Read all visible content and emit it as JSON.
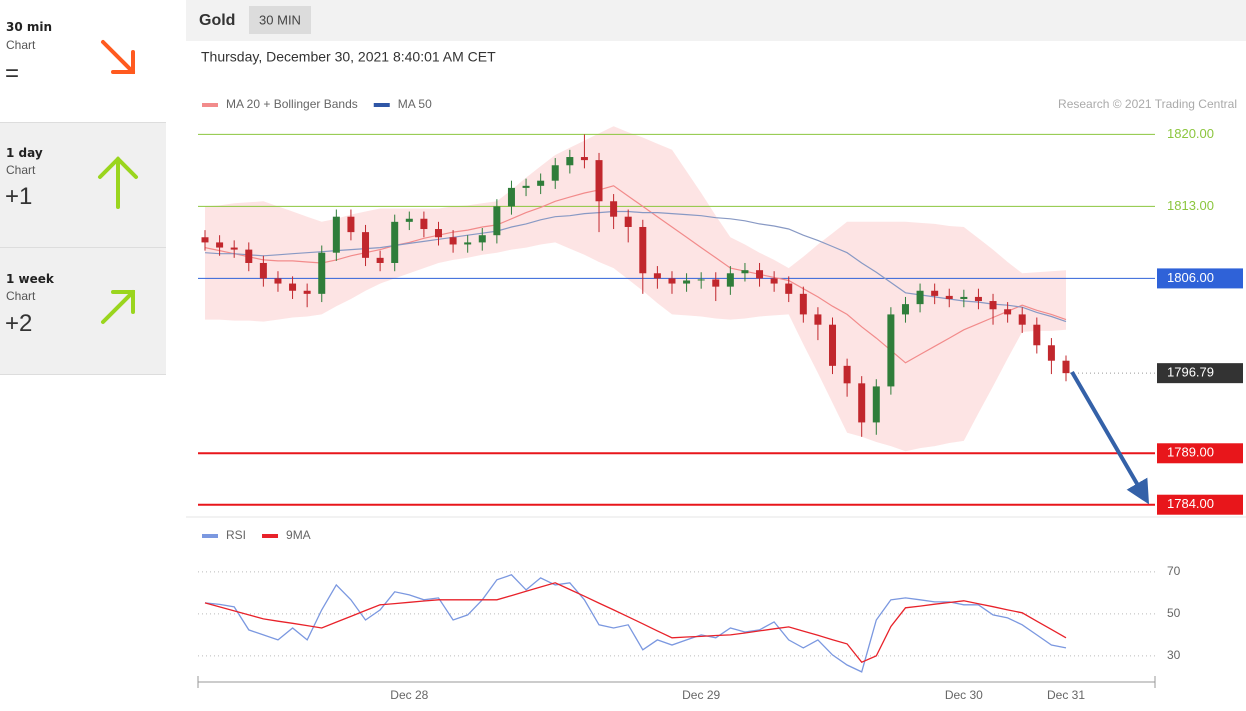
{
  "sidebar": [
    {
      "period": "30 min",
      "label": "Chart",
      "score": "="
    },
    {
      "period": "1 day",
      "label": "Chart",
      "score": "+1"
    },
    {
      "period": "1 week",
      "label": "Chart",
      "score": "+2"
    }
  ],
  "chart_data": [
    {
      "type": "candlestick",
      "title": "Gold",
      "timeframe": "30 MIN",
      "subtitle": "Thursday, December 30, 2021 8:40:01 AM CET",
      "credit": "Research © 2021 Trading Central",
      "categories": [
        null,
        null,
        null,
        null,
        null,
        null,
        null,
        null,
        null,
        null,
        null,
        null,
        null,
        null,
        "Dec 28",
        null,
        null,
        null,
        null,
        null,
        null,
        null,
        null,
        null,
        null,
        null,
        null,
        null,
        null,
        null,
        null,
        null,
        null,
        null,
        "Dec 29",
        null,
        null,
        null,
        null,
        null,
        null,
        null,
        null,
        null,
        null,
        null,
        null,
        null,
        null,
        null,
        null,
        null,
        "Dec 30",
        null,
        null,
        null,
        null,
        null,
        null,
        "Dec 31"
      ],
      "open": [
        1810.0,
        1809.5,
        1809.0,
        1808.8,
        1807.5,
        1806.0,
        1805.5,
        1804.8,
        1804.5,
        1808.5,
        1812.0,
        1810.5,
        1808.0,
        1807.5,
        1811.5,
        1811.8,
        1810.8,
        1810.0,
        1809.3,
        1809.5,
        1810.2,
        1813.0,
        1814.8,
        1815.0,
        1815.5,
        1817.0,
        1817.8,
        1817.5,
        1813.5,
        1812.0,
        1811.0,
        1806.5,
        1806.0,
        1805.5,
        1805.8,
        1805.9,
        1805.2,
        1806.5,
        1806.8,
        1806.0,
        1805.5,
        1804.5,
        1802.5,
        1801.5,
        1797.5,
        1795.8,
        1792.0,
        1795.5,
        1802.5,
        1803.5,
        1804.8,
        1804.3,
        1804.0,
        1804.2,
        1803.8,
        1803.0,
        1802.5,
        1801.5,
        1799.5,
        1798.0
      ],
      "high": [
        1810.7,
        1810.2,
        1809.7,
        1809.5,
        1808.2,
        1806.7,
        1806.2,
        1805.5,
        1809.2,
        1812.7,
        1812.7,
        1811.2,
        1808.7,
        1812.2,
        1812.5,
        1812.5,
        1811.5,
        1810.7,
        1810.2,
        1810.9,
        1813.7,
        1815.5,
        1815.7,
        1816.2,
        1817.7,
        1818.5,
        1820.0,
        1818.2,
        1814.2,
        1812.7,
        1811.7,
        1807.2,
        1806.7,
        1806.5,
        1806.6,
        1806.6,
        1807.2,
        1807.5,
        1807.5,
        1806.7,
        1806.2,
        1805.2,
        1803.2,
        1802.2,
        1798.2,
        1796.5,
        1796.2,
        1803.2,
        1804.2,
        1805.5,
        1805.5,
        1805.0,
        1804.9,
        1805.0,
        1804.5,
        1803.7,
        1803.2,
        1802.2,
        1800.2,
        1798.5
      ],
      "low": [
        1808.7,
        1808.2,
        1808.0,
        1806.7,
        1805.2,
        1804.7,
        1804.0,
        1803.2,
        1803.7,
        1807.7,
        1809.7,
        1807.2,
        1806.7,
        1806.7,
        1810.7,
        1810.0,
        1809.2,
        1808.5,
        1808.5,
        1808.7,
        1809.4,
        1812.2,
        1814.0,
        1814.2,
        1814.7,
        1816.2,
        1816.7,
        1810.5,
        1810.8,
        1809.5,
        1804.5,
        1805.0,
        1804.5,
        1804.7,
        1805.0,
        1803.8,
        1804.4,
        1805.7,
        1805.2,
        1804.7,
        1803.7,
        1801.7,
        1800.0,
        1796.7,
        1794.5,
        1790.6,
        1790.8,
        1794.7,
        1801.7,
        1802.7,
        1803.5,
        1803.2,
        1803.2,
        1803.0,
        1801.5,
        1801.7,
        1800.7,
        1798.7,
        1796.7,
        1796.0
      ],
      "close": [
        1809.5,
        1809.0,
        1808.8,
        1807.5,
        1806.0,
        1805.5,
        1804.8,
        1804.5,
        1808.5,
        1812.0,
        1810.5,
        1808.0,
        1807.5,
        1811.5,
        1811.8,
        1810.8,
        1810.0,
        1809.3,
        1809.5,
        1810.2,
        1813.0,
        1814.8,
        1815.0,
        1815.5,
        1817.0,
        1817.8,
        1817.5,
        1813.5,
        1812.0,
        1811.0,
        1806.5,
        1806.0,
        1805.5,
        1805.8,
        1805.9,
        1805.2,
        1806.5,
        1806.8,
        1806.0,
        1805.5,
        1804.5,
        1802.5,
        1801.5,
        1797.5,
        1795.8,
        1792.0,
        1795.5,
        1802.5,
        1803.5,
        1804.8,
        1804.3,
        1804.0,
        1804.2,
        1803.8,
        1803.0,
        1802.5,
        1801.5,
        1799.5,
        1798.0,
        1796.79
      ],
      "up_color": "#2f7d3a",
      "down_color": "#c1272d",
      "series": [
        {
          "name": "MA 20 + Bollinger Bands",
          "color": "#f28b8b",
          "band_color": "#fde1e1",
          "values": [
            1809.0,
            1808.7,
            1808.4,
            1808.1,
            1807.8,
            1807.7,
            1807.7,
            1807.6,
            1807.5,
            1807.8,
            1808.2,
            1808.5,
            1808.8,
            1809.2,
            1809.5,
            1809.9,
            1810.2,
            1810.5,
            1810.7,
            1811.0,
            1811.2,
            1811.8,
            1812.4,
            1812.9,
            1813.5,
            1813.9,
            1814.3,
            1814.6,
            1815.0,
            1814.0,
            1813.0,
            1812.0,
            1811.0,
            1810.0,
            1809.0,
            1808.0,
            1807.0,
            1806.7,
            1806.4,
            1806.1,
            1805.8,
            1805.0,
            1804.2,
            1803.3,
            1802.5,
            1801.3,
            1800.2,
            1799.0,
            1797.8,
            1798.6,
            1799.4,
            1800.2,
            1801.0,
            1801.6,
            1802.2,
            1802.8,
            1803.4,
            1802.9,
            1802.5,
            1802.0
          ],
          "upper": [
            1813.0,
            1813.1,
            1813.3,
            1813.4,
            1813.5,
            1813.0,
            1812.5,
            1812.0,
            1811.5,
            1811.8,
            1812.2,
            1812.5,
            1812.8,
            1812.8,
            1812.8,
            1812.8,
            1812.8,
            1813.0,
            1813.1,
            1813.3,
            1813.5,
            1814.6,
            1815.8,
            1816.9,
            1818.0,
            1818.7,
            1819.4,
            1820.1,
            1820.8,
            1820.2,
            1819.7,
            1819.1,
            1818.5,
            1816.4,
            1814.3,
            1812.1,
            1810.0,
            1809.3,
            1808.5,
            1807.8,
            1807.0,
            1808.1,
            1809.3,
            1810.4,
            1811.5,
            1811.5,
            1811.5,
            1811.5,
            1811.5,
            1811.4,
            1811.3,
            1811.1,
            1811.0,
            1809.9,
            1808.8,
            1807.6,
            1806.5,
            1806.6,
            1806.7,
            1806.8
          ],
          "lower": [
            1802.0,
            1802.0,
            1801.9,
            1801.9,
            1801.8,
            1802.0,
            1802.2,
            1802.3,
            1802.5,
            1803.3,
            1804.0,
            1804.8,
            1805.5,
            1806.0,
            1806.5,
            1807.0,
            1807.5,
            1807.8,
            1808.0,
            1808.3,
            1808.5,
            1808.8,
            1809.0,
            1809.3,
            1809.5,
            1808.9,
            1808.3,
            1807.6,
            1807.0,
            1805.9,
            1804.8,
            1803.6,
            1802.5,
            1802.4,
            1802.3,
            1802.1,
            1802.0,
            1802.1,
            1802.3,
            1802.4,
            1802.5,
            1799.6,
            1796.8,
            1793.9,
            1791.0,
            1790.6,
            1790.1,
            1789.7,
            1789.2,
            1789.5,
            1789.7,
            1790.0,
            1790.2,
            1792.9,
            1795.5,
            1798.2,
            1800.8,
            1800.9,
            1800.9,
            1801.0
          ]
        },
        {
          "name": "MA 50",
          "color": "#8899c4",
          "legend_color": "#2f56a6",
          "values": [
            1808.5,
            1808.4,
            1808.4,
            1808.3,
            1808.2,
            1808.3,
            1808.4,
            1808.5,
            1808.6,
            1808.7,
            1808.8,
            1808.9,
            1809.0,
            1809.2,
            1809.4,
            1809.6,
            1809.8,
            1810.0,
            1810.2,
            1810.4,
            1810.6,
            1811.0,
            1811.3,
            1811.7,
            1812.0,
            1812.1,
            1812.3,
            1812.4,
            1812.5,
            1812.5,
            1812.4,
            1812.4,
            1812.3,
            1812.2,
            1812.1,
            1811.9,
            1811.8,
            1811.6,
            1811.3,
            1811.1,
            1810.8,
            1810.2,
            1809.7,
            1809.1,
            1808.5,
            1807.5,
            1806.6,
            1805.6,
            1804.6,
            1804.4,
            1804.2,
            1804.0,
            1803.8,
            1803.7,
            1803.5,
            1803.4,
            1803.2,
            1802.7,
            1802.3,
            1801.8
          ]
        }
      ],
      "levels": [
        {
          "value": 1820,
          "label": "1820.00",
          "color": "#8cc63e",
          "box": false,
          "line": "solid"
        },
        {
          "value": 1813,
          "label": "1813.00",
          "color": "#8cc63e",
          "box": false,
          "line": "solid"
        },
        {
          "value": 1806,
          "label": "1806.00",
          "color": "#2f62d8",
          "box": true,
          "line": "solid"
        },
        {
          "value": 1796.79,
          "color": "#333333",
          "box": true,
          "line": "dotted"
        },
        {
          "value": 1789,
          "label": "1789.00",
          "color": "#e8161b",
          "box": true,
          "line": "solid"
        },
        {
          "value": 1784,
          "label": "1784.00",
          "color": "#e8161b",
          "box": true,
          "line": "solid"
        }
      ],
      "ylim": [
        1783,
        1821.4
      ]
    },
    {
      "type": "line",
      "series": [
        {
          "name": "RSI",
          "color": "#7b98e0",
          "values": [
            55.2,
            54.5,
            53.3,
            42.4,
            40.0,
            37.6,
            43.3,
            37.6,
            51.9,
            63.8,
            56.7,
            47.1,
            51.9,
            60.5,
            59.0,
            56.7,
            57.6,
            47.1,
            49.5,
            56.7,
            66.2,
            68.6,
            61.4,
            67.1,
            63.8,
            64.8,
            56.7,
            44.8,
            43.3,
            44.8,
            32.9,
            37.6,
            35.2,
            37.6,
            40.0,
            38.6,
            43.3,
            41.4,
            42.4,
            46.2,
            37.6,
            33.8,
            37.6,
            30.5,
            25.7,
            22.4,
            47.1,
            56.7,
            57.6,
            56.7,
            55.7,
            55.7,
            54.3,
            54.3,
            49.5,
            48.1,
            44.8,
            40.0,
            35.2,
            33.8
          ]
        },
        {
          "name": "9MA",
          "color": "#e8222a",
          "values": [
            55.2,
            53.3,
            51.4,
            49.5,
            47.6,
            46.5,
            45.5,
            44.4,
            43.3,
            46.1,
            48.8,
            51.6,
            54.3,
            54.9,
            55.5,
            56.1,
            56.7,
            56.7,
            56.7,
            56.7,
            56.7,
            58.7,
            60.8,
            62.8,
            64.8,
            61.6,
            58.4,
            55.1,
            51.9,
            48.6,
            45.3,
            41.9,
            38.6,
            39.0,
            39.3,
            39.7,
            40.0,
            40.9,
            41.9,
            42.9,
            43.8,
            41.8,
            39.8,
            37.7,
            35.7,
            27.0,
            30.0,
            44.0,
            52.9,
            53.7,
            54.6,
            55.4,
            56.2,
            54.8,
            53.4,
            51.9,
            50.5,
            46.5,
            42.6,
            38.6
          ]
        }
      ],
      "ylim": [
        19.5,
        78
      ],
      "yticks": [
        30,
        50,
        70
      ],
      "grid": true
    }
  ]
}
